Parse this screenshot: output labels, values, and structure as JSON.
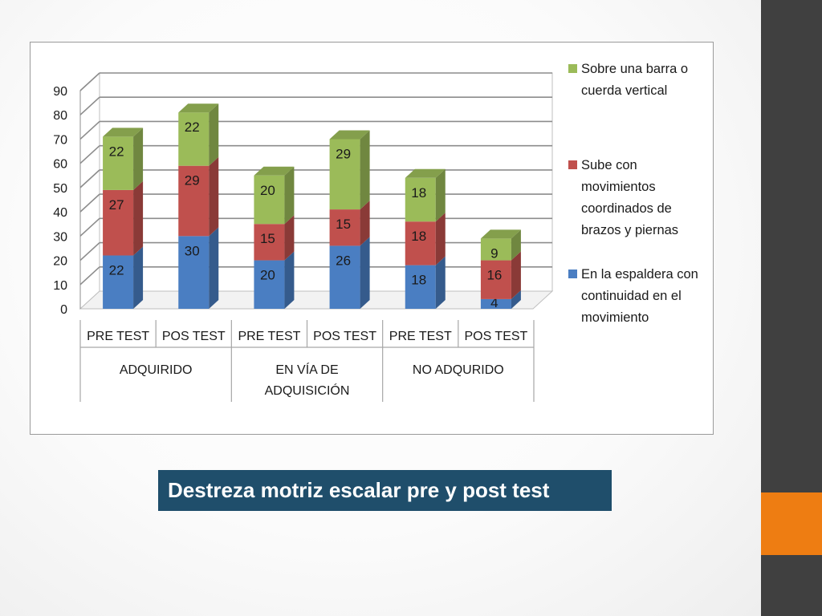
{
  "slide": {
    "caption": "Destreza motriz escalar pre y post test",
    "colors": {
      "side_bar": "#404040",
      "accent": "#ee7d12",
      "caption_bg": "#1f4e6b"
    }
  },
  "chart_data": {
    "type": "bar",
    "stacked": true,
    "three_d": true,
    "title": "",
    "xlabel": "",
    "ylabel": "",
    "ylim": [
      0,
      90
    ],
    "yticks": [
      0,
      10,
      20,
      30,
      40,
      50,
      60,
      70,
      80,
      90
    ],
    "grid": true,
    "legend_position": "right",
    "categories": [
      "PRE TEST",
      "POS TEST",
      "PRE TEST",
      "POS TEST",
      "PRE TEST",
      "POS TEST"
    ],
    "groups": [
      {
        "label": "ADQUIRIDO",
        "span": 2
      },
      {
        "label": "EN VÍA DE ADQUISICIÓN",
        "lines": [
          "EN VÍA DE",
          "ADQUISICIÓN"
        ],
        "span": 2
      },
      {
        "label": "NO ADQURIDO",
        "span": 2
      }
    ],
    "series": [
      {
        "name": "En la espaldera con continuidad en el movimiento",
        "legend_lines": [
          "En la espaldera con",
          "continuidad en el",
          "movimiento"
        ],
        "color": "#4a7ec2",
        "values": [
          22,
          30,
          20,
          26,
          18,
          4
        ]
      },
      {
        "name": "Sube con movimientos coordinados de brazos y piernas",
        "legend_lines": [
          "Sube con",
          "movimientos",
          "coordinados de",
          "brazos y piernas"
        ],
        "color": "#c0504d",
        "values": [
          27,
          29,
          15,
          15,
          18,
          16
        ]
      },
      {
        "name": "Sobre una barra o cuerda vertical",
        "legend_lines": [
          "Sobre una barra o",
          "cuerda vertical"
        ],
        "color": "#9bbb59",
        "values": [
          22,
          22,
          20,
          29,
          18,
          9
        ]
      }
    ],
    "legend_order": [
      2,
      1,
      0
    ]
  }
}
